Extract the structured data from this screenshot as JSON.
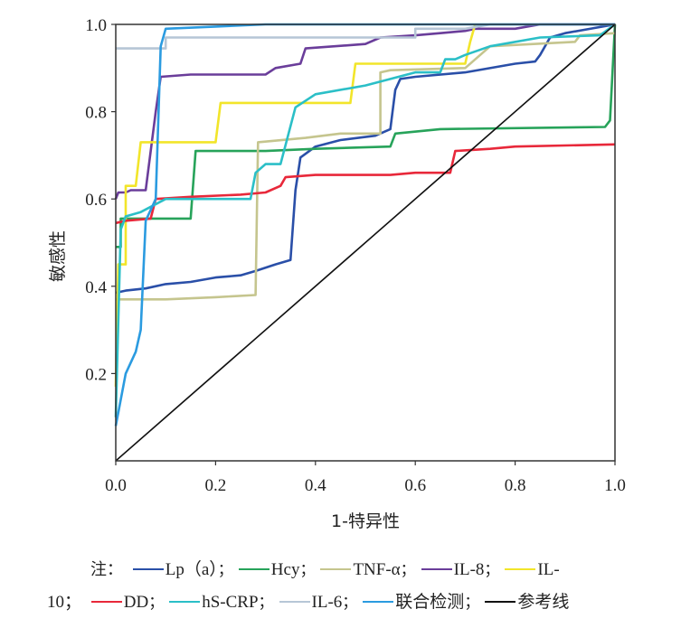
{
  "chart_data": {
    "type": "line",
    "xlabel": "1-特异性",
    "ylabel": "敏感性",
    "xlim": [
      0,
      1.0
    ],
    "ylim": [
      0,
      1.0
    ],
    "x_ticks": [
      "0.0",
      "0.2",
      "0.4",
      "0.6",
      "0.8",
      "1.0"
    ],
    "y_ticks": [
      "0.2",
      "0.4",
      "0.6",
      "0.8",
      "1.0"
    ],
    "grid": false,
    "legend_placement": "bottom",
    "series": [
      {
        "name": "Lp（a）",
        "color": "#2a4fa8",
        "points": [
          [
            0,
            0.385
          ],
          [
            0.02,
            0.39
          ],
          [
            0.06,
            0.395
          ],
          [
            0.1,
            0.405
          ],
          [
            0.15,
            0.41
          ],
          [
            0.2,
            0.42
          ],
          [
            0.25,
            0.425
          ],
          [
            0.28,
            0.435
          ],
          [
            0.32,
            0.45
          ],
          [
            0.35,
            0.46
          ],
          [
            0.36,
            0.62
          ],
          [
            0.37,
            0.695
          ],
          [
            0.4,
            0.72
          ],
          [
            0.45,
            0.735
          ],
          [
            0.52,
            0.745
          ],
          [
            0.55,
            0.76
          ],
          [
            0.56,
            0.85
          ],
          [
            0.57,
            0.875
          ],
          [
            0.6,
            0.88
          ],
          [
            0.7,
            0.89
          ],
          [
            0.8,
            0.91
          ],
          [
            0.84,
            0.915
          ],
          [
            0.85,
            0.93
          ],
          [
            0.87,
            0.97
          ],
          [
            0.9,
            0.98
          ],
          [
            1.0,
            1.0
          ]
        ]
      },
      {
        "name": "Hcy",
        "color": "#27a35a",
        "points": [
          [
            0,
            0.49
          ],
          [
            0.01,
            0.49
          ],
          [
            0.01,
            0.555
          ],
          [
            0.15,
            0.555
          ],
          [
            0.16,
            0.71
          ],
          [
            0.3,
            0.71
          ],
          [
            0.4,
            0.715
          ],
          [
            0.55,
            0.72
          ],
          [
            0.56,
            0.75
          ],
          [
            0.65,
            0.76
          ],
          [
            0.98,
            0.765
          ],
          [
            0.99,
            0.78
          ],
          [
            1.0,
            1.0
          ]
        ]
      },
      {
        "name": "TNF-α",
        "color": "#c5c58e",
        "points": [
          [
            0,
            0.37
          ],
          [
            0.1,
            0.37
          ],
          [
            0.2,
            0.375
          ],
          [
            0.28,
            0.38
          ],
          [
            0.285,
            0.73
          ],
          [
            0.38,
            0.74
          ],
          [
            0.45,
            0.75
          ],
          [
            0.53,
            0.75
          ],
          [
            0.53,
            0.89
          ],
          [
            0.55,
            0.895
          ],
          [
            0.7,
            0.9
          ],
          [
            0.75,
            0.95
          ],
          [
            0.92,
            0.96
          ],
          [
            0.93,
            0.975
          ],
          [
            1.0,
            0.98
          ]
        ]
      },
      {
        "name": "IL-8",
        "color": "#6a3d9a",
        "points": [
          [
            0,
            0.6
          ],
          [
            0.005,
            0.615
          ],
          [
            0.02,
            0.615
          ],
          [
            0.03,
            0.62
          ],
          [
            0.06,
            0.62
          ],
          [
            0.08,
            0.8
          ],
          [
            0.09,
            0.88
          ],
          [
            0.15,
            0.885
          ],
          [
            0.3,
            0.885
          ],
          [
            0.32,
            0.9
          ],
          [
            0.37,
            0.91
          ],
          [
            0.38,
            0.945
          ],
          [
            0.5,
            0.955
          ],
          [
            0.53,
            0.97
          ],
          [
            0.6,
            0.975
          ],
          [
            0.65,
            0.98
          ],
          [
            0.7,
            0.985
          ],
          [
            0.72,
            0.99
          ],
          [
            0.8,
            0.99
          ],
          [
            0.85,
            1.0
          ],
          [
            1.0,
            1.0
          ]
        ]
      },
      {
        "name": "IL-10",
        "color": "#f2e52a",
        "points": [
          [
            0,
            0.17
          ],
          [
            0.005,
            0.45
          ],
          [
            0.02,
            0.45
          ],
          [
            0.02,
            0.63
          ],
          [
            0.04,
            0.63
          ],
          [
            0.05,
            0.73
          ],
          [
            0.2,
            0.73
          ],
          [
            0.21,
            0.82
          ],
          [
            0.47,
            0.82
          ],
          [
            0.48,
            0.91
          ],
          [
            0.7,
            0.91
          ],
          [
            0.71,
            0.96
          ],
          [
            0.72,
            1.0
          ]
        ]
      },
      {
        "name": "DD",
        "color": "#e8283a",
        "points": [
          [
            0,
            0.545
          ],
          [
            0.02,
            0.55
          ],
          [
            0.07,
            0.555
          ],
          [
            0.08,
            0.6
          ],
          [
            0.15,
            0.605
          ],
          [
            0.25,
            0.61
          ],
          [
            0.3,
            0.615
          ],
          [
            0.33,
            0.63
          ],
          [
            0.34,
            0.65
          ],
          [
            0.4,
            0.655
          ],
          [
            0.55,
            0.655
          ],
          [
            0.6,
            0.66
          ],
          [
            0.67,
            0.66
          ],
          [
            0.68,
            0.71
          ],
          [
            0.75,
            0.715
          ],
          [
            0.8,
            0.72
          ],
          [
            1.0,
            0.725
          ]
        ]
      },
      {
        "name": "hS-CRP",
        "color": "#2bbfc7",
        "points": [
          [
            0,
            0.1
          ],
          [
            0.01,
            0.53
          ],
          [
            0.02,
            0.56
          ],
          [
            0.05,
            0.57
          ],
          [
            0.1,
            0.6
          ],
          [
            0.27,
            0.6
          ],
          [
            0.28,
            0.66
          ],
          [
            0.3,
            0.68
          ],
          [
            0.33,
            0.68
          ],
          [
            0.36,
            0.81
          ],
          [
            0.4,
            0.84
          ],
          [
            0.5,
            0.86
          ],
          [
            0.6,
            0.89
          ],
          [
            0.65,
            0.89
          ],
          [
            0.66,
            0.92
          ],
          [
            0.68,
            0.92
          ],
          [
            0.7,
            0.93
          ],
          [
            0.75,
            0.95
          ],
          [
            0.85,
            0.97
          ],
          [
            0.97,
            0.975
          ],
          [
            1.0,
            1.0
          ]
        ]
      },
      {
        "name": "IL-6",
        "color": "#b6c6d6",
        "points": [
          [
            0,
            0.945
          ],
          [
            0.1,
            0.945
          ],
          [
            0.1,
            0.97
          ],
          [
            0.6,
            0.97
          ],
          [
            0.6,
            0.99
          ],
          [
            0.7,
            0.99
          ],
          [
            0.75,
            1.0
          ],
          [
            1.0,
            1.0
          ]
        ]
      },
      {
        "name": "联合检测",
        "color": "#2b9be0",
        "points": [
          [
            0,
            0.08
          ],
          [
            0.02,
            0.2
          ],
          [
            0.04,
            0.25
          ],
          [
            0.05,
            0.3
          ],
          [
            0.06,
            0.55
          ],
          [
            0.08,
            0.6
          ],
          [
            0.09,
            0.95
          ],
          [
            0.1,
            0.99
          ],
          [
            0.2,
            0.995
          ],
          [
            0.3,
            1.0
          ],
          [
            1.0,
            1.0
          ]
        ]
      },
      {
        "name": "参考线",
        "color": "#111111",
        "points": [
          [
            0,
            0
          ],
          [
            1.0,
            1.0
          ]
        ]
      }
    ]
  },
  "legend": {
    "note": "注：",
    "separator": "；",
    "line1": [
      {
        "label": "Lp（a）",
        "color": "#2a4fa8"
      },
      {
        "label": "Hcy",
        "color": "#27a35a"
      },
      {
        "label": "TNF-α",
        "color": "#c5c58e"
      },
      {
        "label": "IL-8",
        "color": "#6a3d9a"
      },
      {
        "label": "IL-",
        "color": "#f2e52a"
      }
    ],
    "line2_prefix": "10；",
    "line2": [
      {
        "label": "DD",
        "color": "#e8283a"
      },
      {
        "label": "hS-CRP",
        "color": "#2bbfc7"
      },
      {
        "label": "IL-6",
        "color": "#b6c6d6"
      },
      {
        "label": "联合检测",
        "color": "#2b9be0"
      },
      {
        "label": "参考线",
        "color": "#111111"
      }
    ]
  }
}
